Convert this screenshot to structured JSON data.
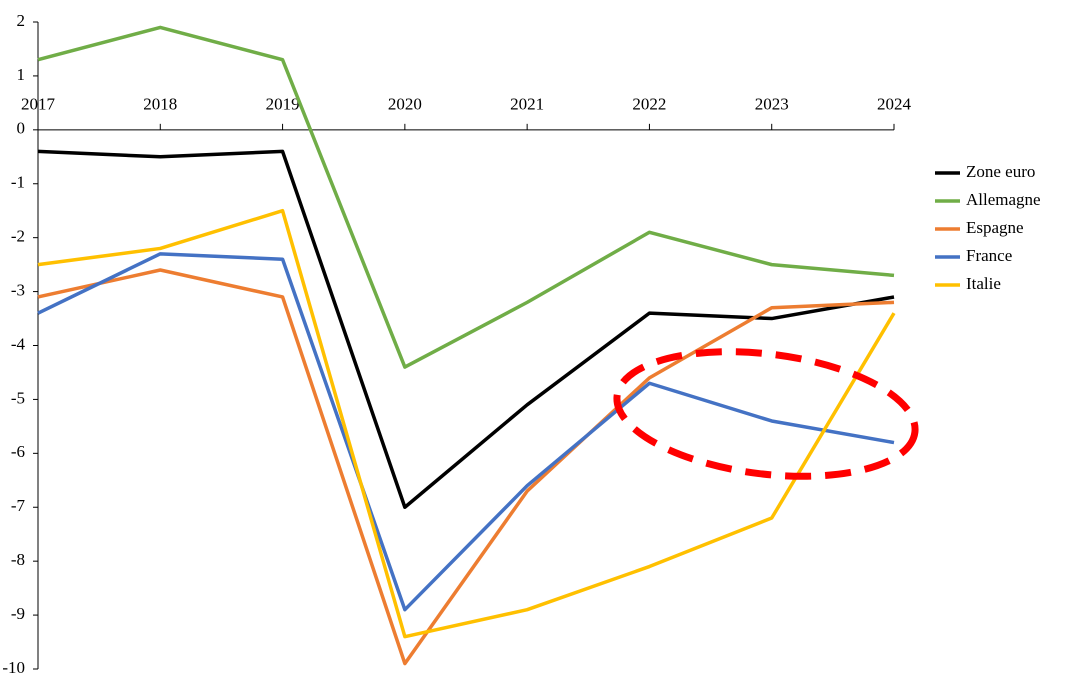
{
  "chart_data": {
    "type": "line",
    "categories": [
      "2017",
      "2018",
      "2019",
      "2020",
      "2021",
      "2022",
      "2023",
      "2024"
    ],
    "series": [
      {
        "name": "Zone euro",
        "color": "#000000",
        "values": [
          -0.4,
          -0.5,
          -0.4,
          -7.0,
          -5.1,
          -3.4,
          -3.5,
          -3.1
        ]
      },
      {
        "name": "Allemagne",
        "color": "#70ad47",
        "values": [
          1.3,
          1.9,
          1.3,
          -4.4,
          -3.2,
          -1.9,
          -2.5,
          -2.7
        ]
      },
      {
        "name": "Espagne",
        "color": "#ed7d31",
        "values": [
          -3.1,
          -2.6,
          -3.1,
          -9.9,
          -6.7,
          -4.6,
          -3.3,
          -3.2
        ]
      },
      {
        "name": "France",
        "color": "#4472c4",
        "values": [
          -3.4,
          -2.3,
          -2.4,
          -8.9,
          -6.6,
          -4.7,
          -5.4,
          -5.8
        ]
      },
      {
        "name": "Italie",
        "color": "#ffc000",
        "values": [
          -2.5,
          -2.2,
          -1.5,
          -9.4,
          -8.9,
          -8.1,
          -7.2,
          -3.4
        ]
      }
    ],
    "ylim": [
      -10,
      2
    ],
    "yticks": [
      2,
      1,
      0,
      -1,
      -2,
      -3,
      -4,
      -5,
      -6,
      -7,
      -8,
      -9,
      -10
    ],
    "grid": false,
    "legend": "right"
  }
}
